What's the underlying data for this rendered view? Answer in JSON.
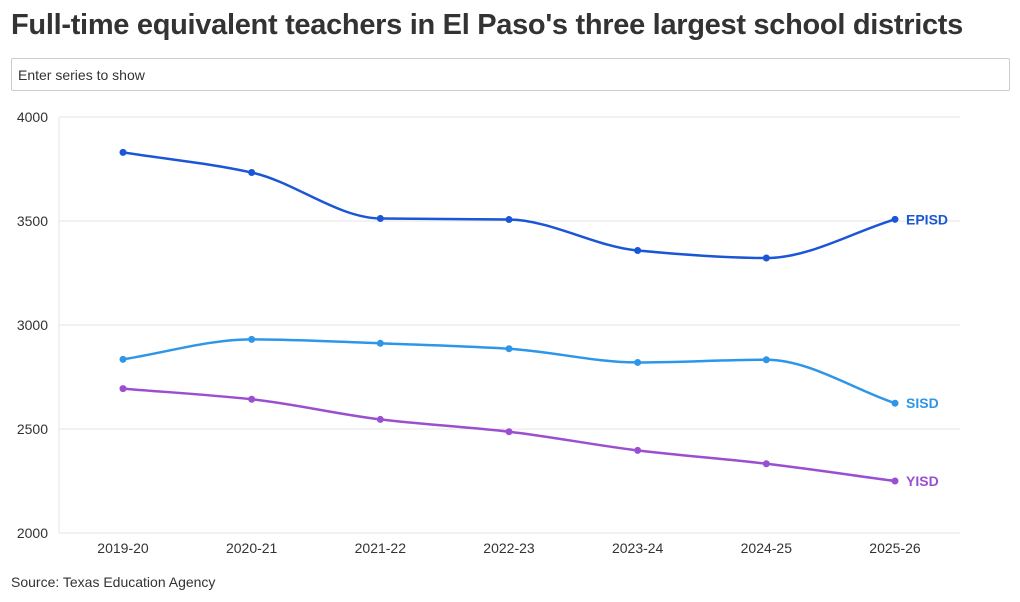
{
  "header": {
    "title": "Full-time equivalent teachers in El Paso's three largest school districts"
  },
  "controls": {
    "series_input_placeholder": "Enter series to show"
  },
  "footer": {
    "source": "Source: Texas Education Agency"
  },
  "chart_data": {
    "type": "line",
    "title": "Full-time equivalent teachers in El Paso's three largest school districts",
    "xlabel": "",
    "ylabel": "",
    "categories": [
      "2019-20",
      "2020-21",
      "2021-22",
      "2022-23",
      "2023-24",
      "2024-25",
      "2025-26"
    ],
    "ylim": [
      2000,
      4000
    ],
    "yticks": [
      2000,
      2500,
      3000,
      3500,
      4000
    ],
    "grid": true,
    "legend": "direct labels at line ends",
    "series": [
      {
        "name": "EPISD",
        "color": "#1a56d6",
        "values": [
          3830,
          3733,
          3512,
          3507,
          3358,
          3322,
          3508
        ]
      },
      {
        "name": "SISD",
        "color": "#2e96e8",
        "values": [
          2835,
          2931,
          2912,
          2886,
          2820,
          2833,
          2624
        ]
      },
      {
        "name": "YISD",
        "color": "#9a4fd1",
        "values": [
          2694,
          2643,
          2546,
          2487,
          2397,
          2333,
          2250
        ]
      }
    ],
    "source": "Source: Texas Education Agency"
  }
}
